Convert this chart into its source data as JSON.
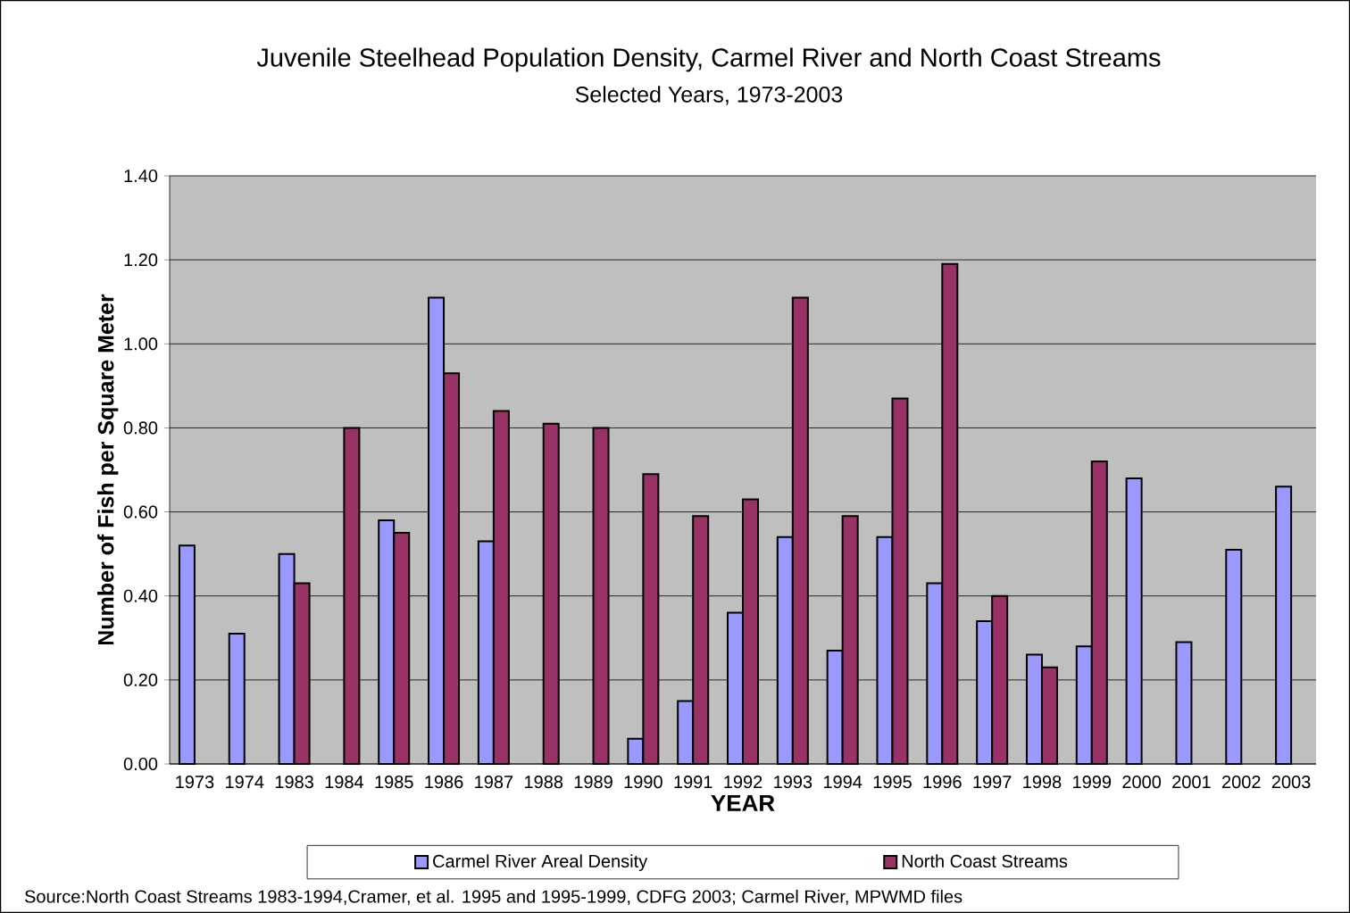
{
  "chart_data": {
    "type": "bar",
    "title": "Juvenile Steelhead Population Density, Carmel River and North Coast Streams",
    "subtitle": "Selected Years, 1973-2003",
    "xlabel": "YEAR",
    "ylabel": "Number of Fish per Square Meter",
    "categories": [
      "1973",
      "1974",
      "1983",
      "1984",
      "1985",
      "1986",
      "1987",
      "1988",
      "1989",
      "1990",
      "1991",
      "1992",
      "1993",
      "1994",
      "1995",
      "1996",
      "1997",
      "1998",
      "1999",
      "2000",
      "2001",
      "2002",
      "2003"
    ],
    "series": [
      {
        "name": "Carmel River Areal Density",
        "color": "#9999ff",
        "values": [
          0.52,
          0.31,
          0.5,
          null,
          0.58,
          1.11,
          0.53,
          null,
          null,
          0.06,
          0.15,
          0.36,
          0.54,
          0.27,
          0.54,
          0.43,
          0.34,
          0.26,
          0.28,
          0.68,
          0.29,
          0.51,
          0.66
        ]
      },
      {
        "name": "North Coast Streams",
        "color": "#993366",
        "values": [
          null,
          null,
          0.43,
          0.8,
          0.55,
          0.93,
          0.84,
          0.81,
          0.8,
          0.69,
          0.59,
          0.63,
          1.11,
          0.59,
          0.87,
          1.19,
          0.4,
          0.23,
          0.72,
          null,
          null,
          null,
          null
        ]
      }
    ],
    "ylim": [
      0,
      1.4
    ],
    "yticks": [
      {
        "value": 0,
        "label": "0.00"
      },
      {
        "value": 0.2,
        "label": "0.20"
      },
      {
        "value": 0.4,
        "label": "0.40"
      },
      {
        "value": 0.6,
        "label": "0.60"
      },
      {
        "value": 0.8,
        "label": "0.80"
      },
      {
        "value": 1.0,
        "label": "1.00"
      },
      {
        "value": 1.2,
        "label": "1.20"
      },
      {
        "value": 1.4,
        "label": "1.40"
      }
    ],
    "grid": "y",
    "legend": "bottom",
    "annotations": [
      "Source:North Coast Streams 1983-1994,Cramer, et al. 1995 and 1995-1999, CDFG 2003; Carmel River, MPWMD files"
    ]
  }
}
